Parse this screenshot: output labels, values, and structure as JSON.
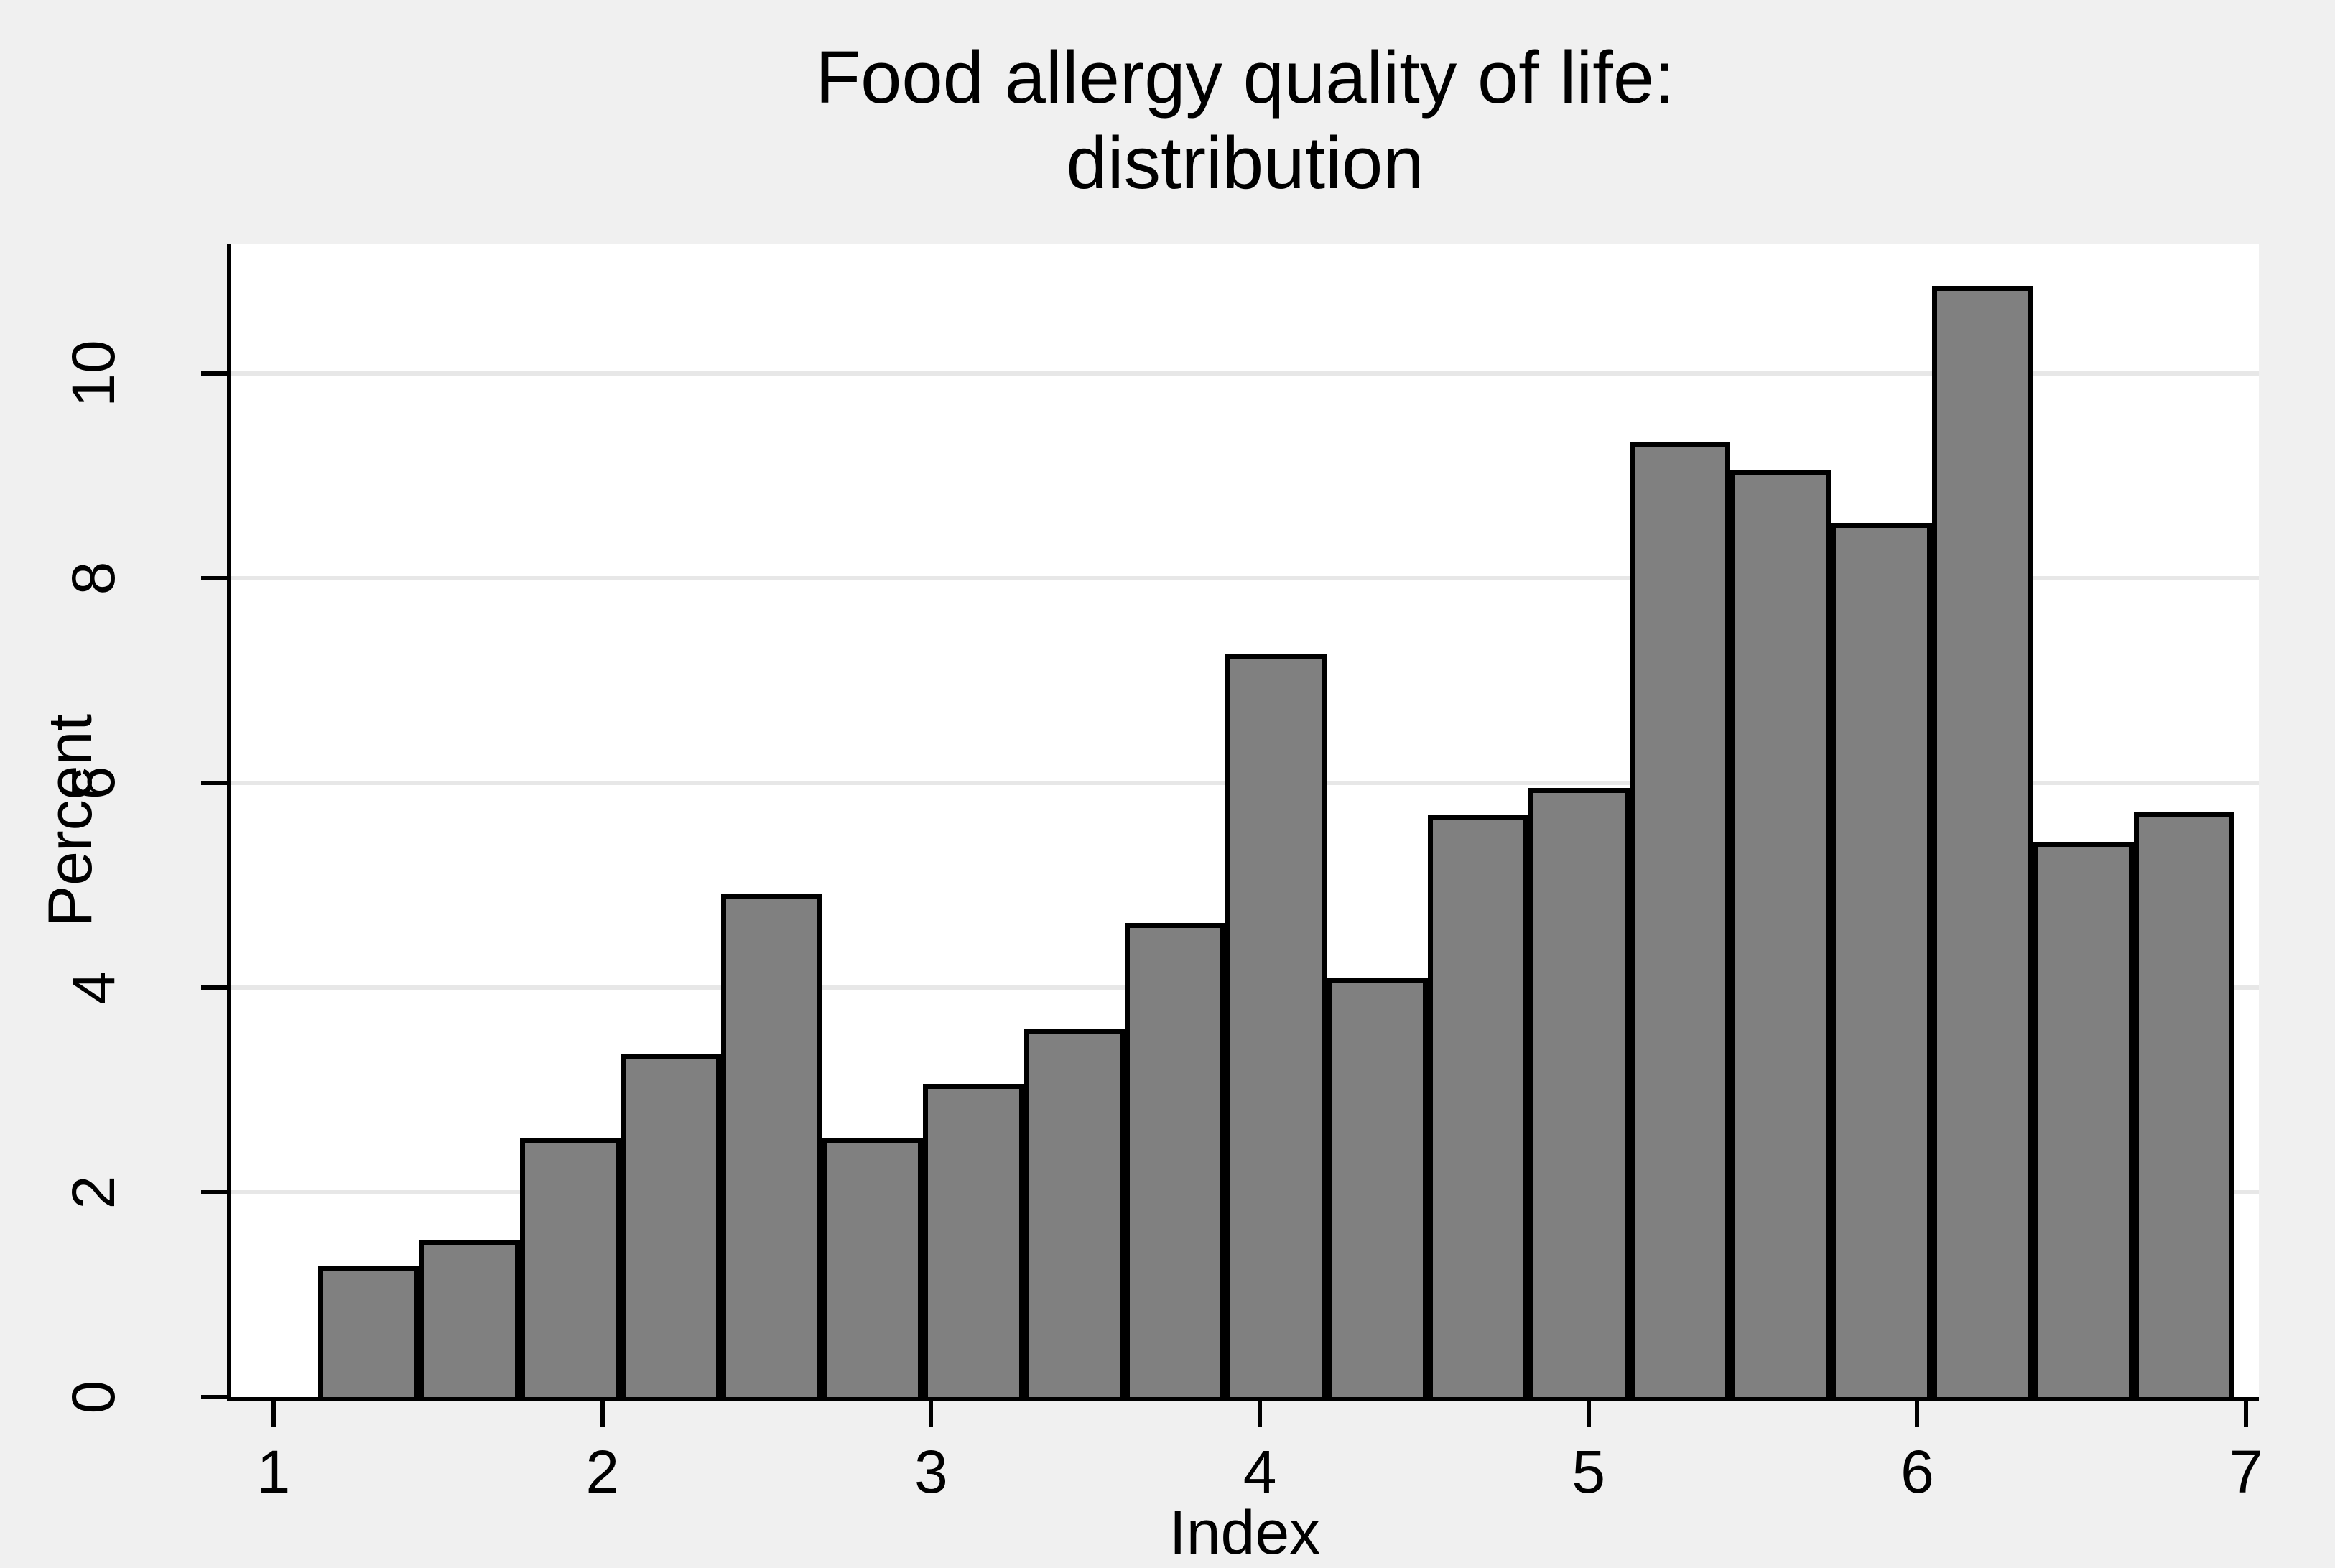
{
  "title": {
    "line1": "Food allergy quality of life:",
    "line2": "distribution"
  },
  "y_axis": {
    "title": "Percent",
    "ticks": [
      0,
      2,
      4,
      6,
      8,
      10
    ],
    "min": 0,
    "max": 11.26
  },
  "x_axis": {
    "title": "Index",
    "ticks": [
      1,
      2,
      3,
      4,
      5,
      6,
      7
    ],
    "min": 0.871,
    "max": 7.039
  },
  "colors": {
    "outer_background": "#f0f0f0",
    "plot_background": "#ffffff",
    "gridline": "#e7e7e7",
    "bar_fill": "#808080",
    "bar_border": "#000000",
    "axis": "#000000",
    "text": "#000000"
  },
  "chart_data": {
    "type": "bar",
    "subtype": "histogram",
    "title": "Food allergy quality of life: distribution",
    "xlabel": "Index",
    "ylabel": "Percent",
    "bin_start": 1.135,
    "bin_width": 0.307,
    "n_bins": 19,
    "bin_edges": [
      1.135,
      1.442,
      1.749,
      2.056,
      2.362,
      2.669,
      2.976,
      3.283,
      3.59,
      3.896,
      4.203,
      4.51,
      4.817,
      5.124,
      5.43,
      5.737,
      6.044,
      6.351,
      6.658,
      6.965
    ],
    "values_percent": [
      1.28,
      1.53,
      2.53,
      3.35,
      4.92,
      2.53,
      3.06,
      3.6,
      4.63,
      7.26,
      4.1,
      5.68,
      5.95,
      9.33,
      9.06,
      8.54,
      10.85,
      5.42,
      5.71
    ],
    "xlim": [
      0.871,
      7.039
    ],
    "ylim": [
      0,
      11.26
    ],
    "x_ticks": [
      1,
      2,
      3,
      4,
      5,
      6,
      7
    ],
    "y_ticks": [
      0,
      2,
      4,
      6,
      8,
      10
    ],
    "grid": "horizontal",
    "legend": "none"
  }
}
